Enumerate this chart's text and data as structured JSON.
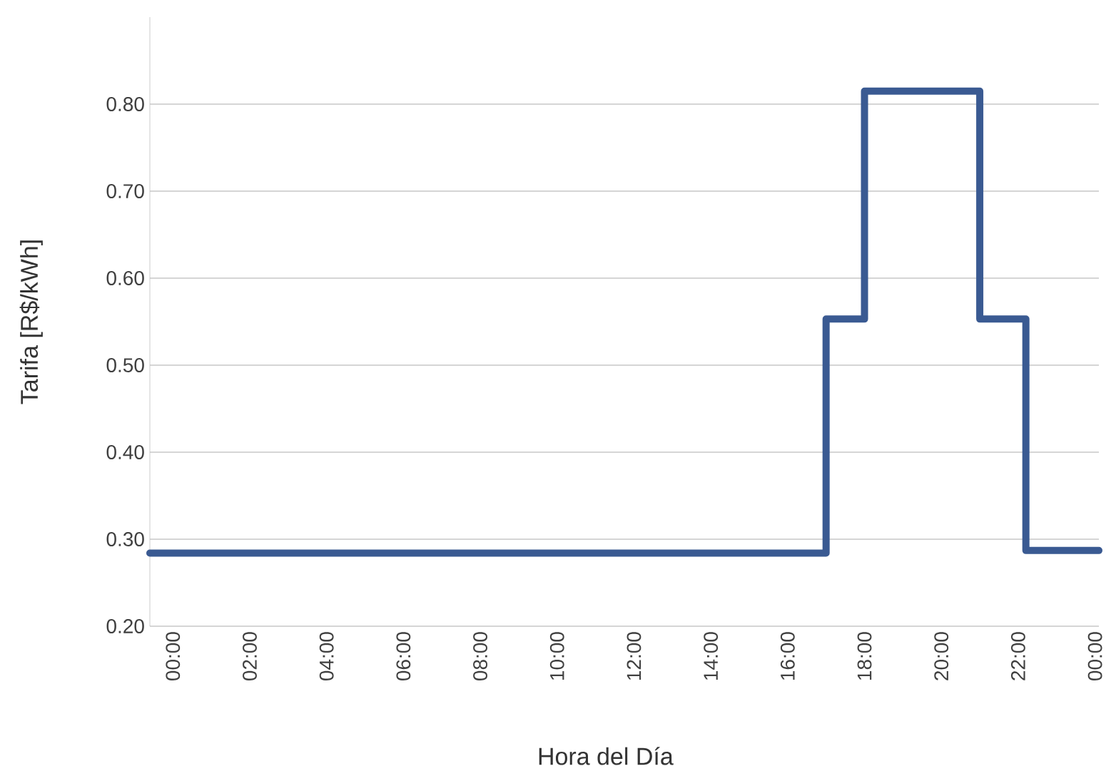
{
  "chart_data": {
    "type": "step",
    "xlabel": "Hora del Día",
    "ylabel": "Tarifa [R$/kWh]",
    "series": [
      {
        "color": "#3a5a92",
        "x": [
          -0.6,
          17,
          18,
          21,
          22.2,
          24.1
        ],
        "values": [
          0.284,
          0.553,
          0.815,
          0.553,
          0.287,
          0.287
        ]
      }
    ],
    "xlim": [
      -0.6,
      24.1
    ],
    "ylim": [
      0.2,
      0.9
    ],
    "xticks": [
      {
        "value": 0,
        "label": "00:00"
      },
      {
        "value": 2,
        "label": "02:00"
      },
      {
        "value": 4,
        "label": "04:00"
      },
      {
        "value": 6,
        "label": "06:00"
      },
      {
        "value": 8,
        "label": "08:00"
      },
      {
        "value": 10,
        "label": "10:00"
      },
      {
        "value": 12,
        "label": "12:00"
      },
      {
        "value": 14,
        "label": "14:00"
      },
      {
        "value": 16,
        "label": "16:00"
      },
      {
        "value": 18,
        "label": "18:00"
      },
      {
        "value": 20,
        "label": "20:00"
      },
      {
        "value": 22,
        "label": "22:00"
      },
      {
        "value": 24,
        "label": "00:00"
      }
    ],
    "yticks": [
      {
        "value": 0.2,
        "label": "0.20"
      },
      {
        "value": 0.3,
        "label": "0.30"
      },
      {
        "value": 0.4,
        "label": "0.40"
      },
      {
        "value": 0.5,
        "label": "0.50"
      },
      {
        "value": 0.6,
        "label": "0.60"
      },
      {
        "value": 0.7,
        "label": "0.70"
      },
      {
        "value": 0.8,
        "label": "0.80"
      }
    ],
    "grid": "y",
    "marker": "none",
    "line_style": "solid"
  }
}
